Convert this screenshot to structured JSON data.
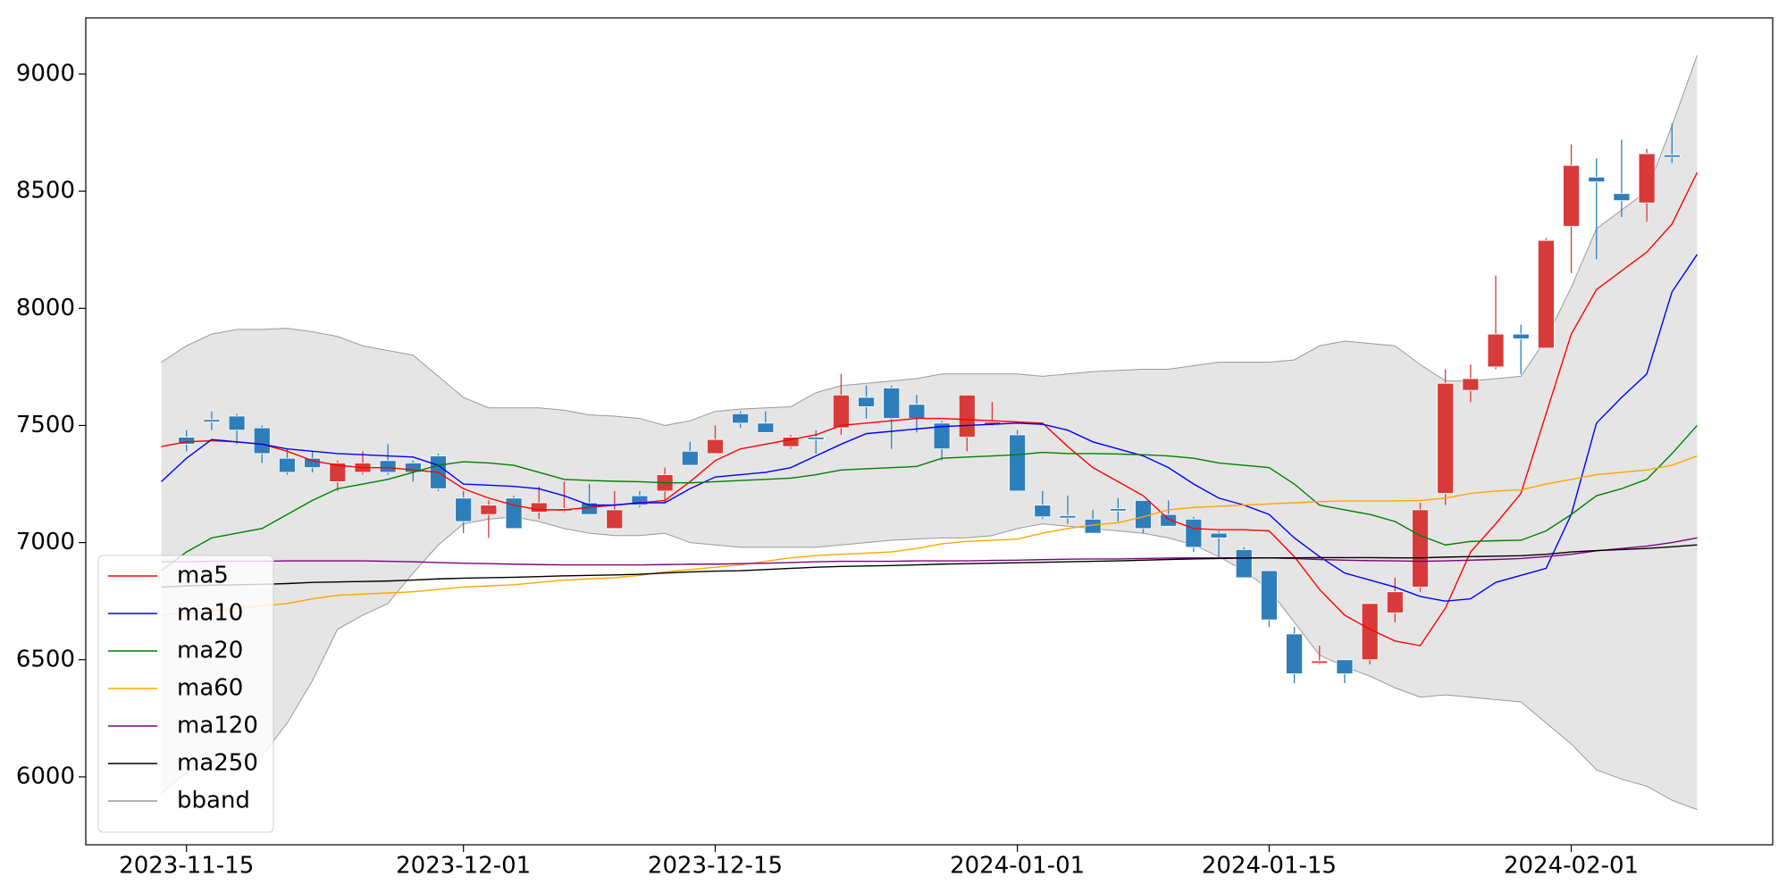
{
  "chart_data": {
    "type": "candlestick",
    "categories": [
      null,
      "2023-11-15",
      null,
      null,
      null,
      null,
      null,
      null,
      null,
      null,
      null,
      null,
      "2023-12-01",
      null,
      null,
      null,
      null,
      null,
      null,
      null,
      null,
      null,
      "2023-12-15",
      null,
      null,
      null,
      null,
      null,
      null,
      null,
      null,
      null,
      null,
      null,
      "2024-01-01",
      null,
      null,
      null,
      null,
      null,
      null,
      null,
      null,
      null,
      "2024-01-15",
      null,
      null,
      null,
      null,
      null,
      null,
      null,
      null,
      null,
      null,
      null,
      "2024-02-01",
      null,
      null,
      null,
      null,
      null
    ],
    "candles": {
      "up_color": "#d83a3a",
      "down_color": "#2e7ebc",
      "open": [
        null,
        7450,
        7525,
        7540,
        7490,
        7360,
        7360,
        7260,
        7300,
        7350,
        7340,
        7370,
        7190,
        7120,
        7190,
        7130,
        7135,
        7170,
        7060,
        7200,
        7220,
        7390,
        7380,
        7550,
        7510,
        7410,
        7450,
        7490,
        7620,
        7660,
        7590,
        7510,
        7450,
        7505,
        7460,
        7160,
        7115,
        7100,
        7145,
        7180,
        7120,
        7100,
        7040,
        6970,
        6880,
        6610,
        6485,
        6500,
        6500,
        6700,
        6810,
        7210,
        7650,
        7750,
        7890,
        7830,
        8350,
        8560,
        8490,
        8450,
        8655,
        null
      ],
      "high": [
        null,
        7480,
        7560,
        7550,
        7500,
        7400,
        7390,
        7350,
        7390,
        7420,
        7350,
        7380,
        7220,
        7180,
        7200,
        7240,
        7260,
        7250,
        7220,
        7220,
        7320,
        7430,
        7500,
        7560,
        7560,
        7460,
        7480,
        7720,
        7670,
        7670,
        7630,
        7520,
        7630,
        7600,
        7480,
        7220,
        7200,
        7140,
        7190,
        7180,
        7180,
        7110,
        7050,
        6980,
        6880,
        6640,
        6560,
        6500,
        6740,
        6850,
        7170,
        7740,
        7760,
        8140,
        7930,
        8300,
        8700,
        8640,
        8720,
        8680,
        8790,
        null
      ],
      "low": [
        null,
        7390,
        7480,
        7420,
        7340,
        7290,
        7300,
        7220,
        7290,
        7290,
        7260,
        7220,
        7040,
        7020,
        7060,
        7100,
        7130,
        7120,
        7060,
        7150,
        7170,
        7330,
        7380,
        7490,
        7470,
        7400,
        7380,
        7460,
        7530,
        7400,
        7470,
        7350,
        7390,
        7500,
        7220,
        7100,
        7080,
        7040,
        7090,
        7040,
        7070,
        6960,
        6940,
        6850,
        6640,
        6400,
        6480,
        6400,
        6480,
        6660,
        6790,
        7160,
        7600,
        7740,
        7720,
        7830,
        8150,
        8210,
        8390,
        8370,
        8620,
        null
      ],
      "close": [
        null,
        7420,
        7515,
        7480,
        7380,
        7300,
        7320,
        7340,
        7340,
        7300,
        7300,
        7230,
        7090,
        7160,
        7060,
        7170,
        7145,
        7120,
        7140,
        7160,
        7290,
        7330,
        7440,
        7510,
        7470,
        7450,
        7440,
        7630,
        7580,
        7530,
        7530,
        7400,
        7630,
        7515,
        7220,
        7110,
        7105,
        7040,
        7135,
        7060,
        7070,
        6980,
        7020,
        6850,
        6670,
        6440,
        6495,
        6440,
        6740,
        6790,
        7140,
        7680,
        7700,
        7890,
        7870,
        8290,
        8610,
        8540,
        8460,
        8660,
        8645,
        null
      ]
    },
    "series": [
      {
        "name": "ma5",
        "color": "#ff0000",
        "values": [
          7410,
          7430,
          7435,
          7430,
          7420,
          7390,
          7350,
          7330,
          7320,
          7320,
          7310,
          7300,
          7230,
          7190,
          7160,
          7140,
          7140,
          7150,
          7160,
          7170,
          7180,
          7260,
          7350,
          7400,
          7420,
          7440,
          7460,
          7500,
          7510,
          7520,
          7530,
          7530,
          7525,
          7520,
          7515,
          7510,
          7410,
          7320,
          7260,
          7200,
          7100,
          7060,
          7055,
          7055,
          7050,
          6940,
          6800,
          6690,
          6630,
          6580,
          6560,
          6720,
          6960,
          7080,
          7210,
          7550,
          7890,
          8080,
          8160,
          8240,
          8360,
          8580
        ]
      },
      {
        "name": "ma10",
        "color": "#0000ff",
        "values": [
          7260,
          7360,
          7440,
          7430,
          7420,
          7400,
          7390,
          7380,
          7375,
          7370,
          7365,
          7330,
          7250,
          7245,
          7240,
          7230,
          7200,
          7160,
          7160,
          7170,
          7170,
          7230,
          7280,
          7290,
          7300,
          7320,
          7370,
          7420,
          7465,
          7475,
          7485,
          7495,
          7500,
          7505,
          7510,
          7505,
          7480,
          7430,
          7400,
          7370,
          7320,
          7250,
          7190,
          7160,
          7120,
          7020,
          6940,
          6870,
          6840,
          6810,
          6770,
          6750,
          6760,
          6830,
          6860,
          6890,
          7120,
          7510,
          7620,
          7720,
          8070,
          8230
        ]
      },
      {
        "name": "ma20",
        "color": "#008000",
        "values": [
          6880,
          6960,
          7020,
          7040,
          7060,
          7120,
          7180,
          7230,
          7250,
          7270,
          7300,
          7330,
          7345,
          7340,
          7330,
          7300,
          7270,
          7265,
          7262,
          7260,
          7255,
          7255,
          7260,
          7265,
          7270,
          7275,
          7290,
          7310,
          7315,
          7320,
          7325,
          7360,
          7365,
          7370,
          7375,
          7385,
          7380,
          7380,
          7378,
          7375,
          7370,
          7360,
          7340,
          7330,
          7320,
          7250,
          7160,
          7140,
          7120,
          7090,
          7030,
          6990,
          7005,
          7008,
          7010,
          7050,
          7120,
          7200,
          7230,
          7270,
          7380,
          7500
        ]
      },
      {
        "name": "ma60",
        "color": "#ffa500",
        "values": [
          6690,
          6700,
          6710,
          6720,
          6730,
          6740,
          6760,
          6775,
          6780,
          6785,
          6790,
          6800,
          6810,
          6815,
          6820,
          6830,
          6840,
          6845,
          6850,
          6860,
          6875,
          6885,
          6895,
          6905,
          6920,
          6935,
          6945,
          6950,
          6955,
          6960,
          6975,
          6995,
          7005,
          7010,
          7015,
          7040,
          7060,
          7075,
          7085,
          7110,
          7140,
          7150,
          7155,
          7160,
          7165,
          7170,
          7175,
          7178,
          7178,
          7178,
          7180,
          7190,
          7210,
          7220,
          7225,
          7250,
          7270,
          7290,
          7300,
          7310,
          7330,
          7370
        ]
      },
      {
        "name": "ma120",
        "color": "#800080",
        "values": [
          6918,
          6918,
          6920,
          6920,
          6920,
          6922,
          6922,
          6922,
          6922,
          6920,
          6918,
          6915,
          6912,
          6910,
          6908,
          6906,
          6905,
          6905,
          6905,
          6905,
          6906,
          6908,
          6908,
          6910,
          6912,
          6915,
          6918,
          6920,
          6920,
          6920,
          6922,
          6922,
          6922,
          6924,
          6925,
          6927,
          6929,
          6930,
          6930,
          6932,
          6934,
          6935,
          6935,
          6935,
          6935,
          6932,
          6928,
          6925,
          6923,
          6922,
          6920,
          6922,
          6925,
          6928,
          6932,
          6940,
          6950,
          6965,
          6975,
          6985,
          7000,
          7020
        ]
      },
      {
        "name": "ma250",
        "color": "#000000",
        "values": [
          6810,
          6815,
          6818,
          6820,
          6822,
          6825,
          6830,
          6832,
          6834,
          6836,
          6840,
          6845,
          6848,
          6850,
          6852,
          6855,
          6858,
          6860,
          6862,
          6865,
          6870,
          6875,
          6878,
          6880,
          6885,
          6890,
          6895,
          6898,
          6900,
          6902,
          6905,
          6908,
          6910,
          6912,
          6914,
          6916,
          6918,
          6920,
          6922,
          6925,
          6928,
          6930,
          6932,
          6934,
          6935,
          6935,
          6936,
          6936,
          6936,
          6935,
          6935,
          6938,
          6940,
          6942,
          6944,
          6950,
          6960,
          6966,
          6970,
          6975,
          6982,
          6990
        ]
      }
    ],
    "band": {
      "name": "bband",
      "color": "#999999",
      "fill_color": "#e5e5e5",
      "upper": [
        7770,
        7840,
        7890,
        7910,
        7910,
        7915,
        7900,
        7880,
        7840,
        7820,
        7800,
        7710,
        7620,
        7575,
        7575,
        7575,
        7565,
        7545,
        7540,
        7530,
        7500,
        7520,
        7560,
        7570,
        7575,
        7580,
        7640,
        7670,
        7680,
        7690,
        7700,
        7720,
        7720,
        7720,
        7720,
        7710,
        7720,
        7730,
        7735,
        7740,
        7740,
        7755,
        7770,
        7770,
        7770,
        7780,
        7840,
        7860,
        7850,
        7840,
        7760,
        7690,
        7690,
        7700,
        7710,
        7870,
        8090,
        8340,
        8420,
        8500,
        8780,
        9080
      ],
      "lower": [
        5930,
        6020,
        6060,
        6070,
        6090,
        6230,
        6410,
        6630,
        6690,
        6740,
        6870,
        6990,
        7080,
        7100,
        7110,
        7090,
        7060,
        7040,
        7030,
        7030,
        7040,
        7000,
        6990,
        6980,
        6980,
        6980,
        6980,
        6990,
        7000,
        7010,
        7015,
        7020,
        7020,
        7030,
        7060,
        7080,
        7070,
        7060,
        7050,
        7040,
        7020,
        6990,
        6940,
        6880,
        6800,
        6660,
        6520,
        6470,
        6430,
        6380,
        6340,
        6350,
        6340,
        6330,
        6320,
        6230,
        6140,
        6030,
        5990,
        5960,
        5900,
        5860
      ]
    },
    "ylim": [
      5710,
      9240
    ],
    "yticks": [
      6000,
      6500,
      7000,
      7500,
      8000,
      8500,
      9000
    ],
    "legend": "lower left"
  }
}
